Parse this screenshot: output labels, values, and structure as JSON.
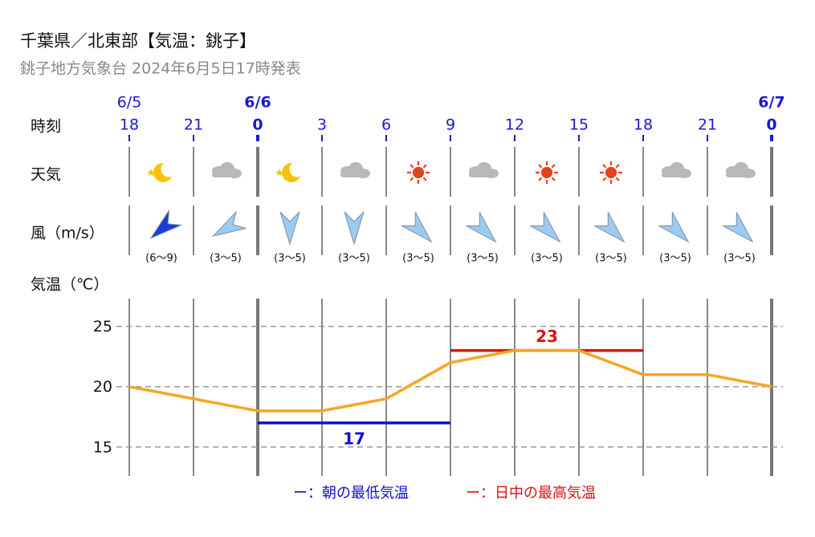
{
  "chart_data": {
    "type": "line",
    "title": "千葉県／北東部【気温：銚子】",
    "subtitle": "銚子地方気象台 2024年6月5日17時発表",
    "row_labels": [
      "時刻",
      "天気",
      "風（m/s）",
      "気温（℃）"
    ],
    "dates": [
      "6/5",
      null,
      "6/6",
      null,
      null,
      null,
      null,
      null,
      null,
      null,
      "6/7"
    ],
    "categories": [
      "18",
      "21",
      "0",
      "3",
      "6",
      "9",
      "12",
      "15",
      "18",
      "21",
      "0"
    ],
    "wind_labels": [
      "(6〜9)",
      "(3〜5)",
      "(3〜5)",
      "(3〜5)",
      "(3〜5)",
      "(3〜5)",
      "(3〜5)",
      "(3〜5)",
      "(3〜5)",
      "(3〜5)"
    ],
    "values": [
      20,
      19,
      18,
      18,
      19,
      22,
      23,
      23,
      21,
      21,
      20
    ],
    "color": "#f5a623",
    "min_temp": {
      "label": "ー：朝の最低気温",
      "value": 17,
      "color": "#1010cc"
    },
    "max_temp": {
      "label": "ー：日中の最高気温",
      "value": 23,
      "color": "#dd1111"
    },
    "ylim": [
      12.6,
      27.3
    ],
    "yticks": [
      15,
      20,
      25
    ],
    "grid": true
  }
}
